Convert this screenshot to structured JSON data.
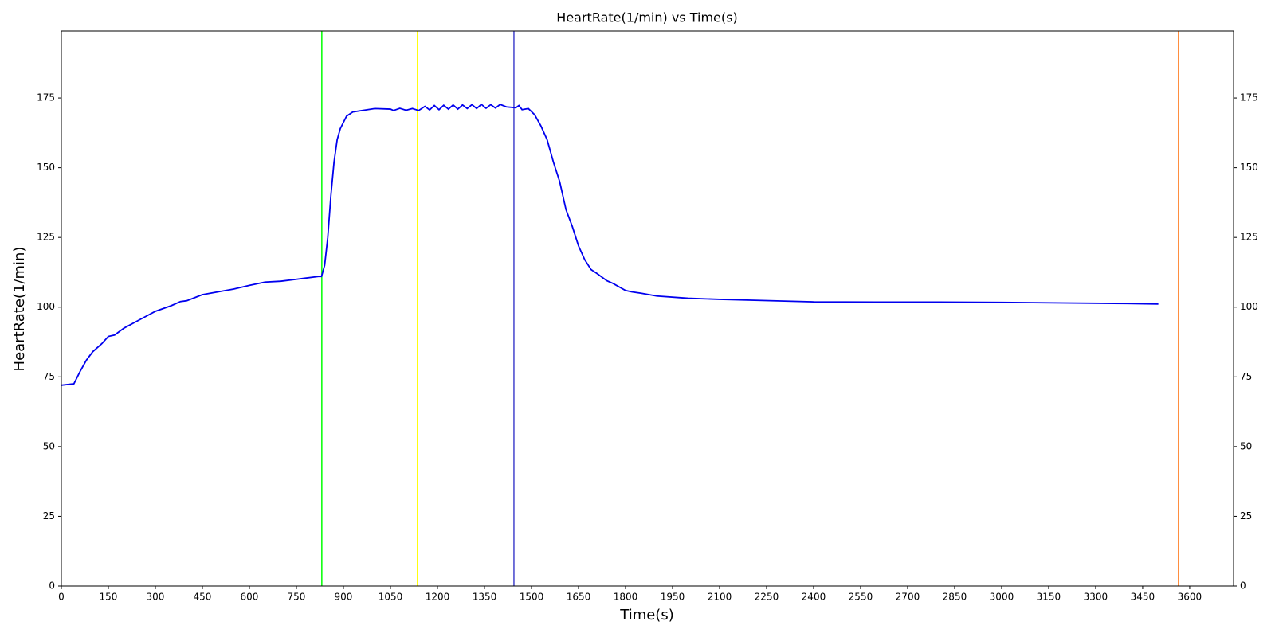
{
  "chart_data": {
    "type": "line",
    "title": "HeartRate(1/min) vs Time(s)",
    "x_label": "Time(s)",
    "y_label": "HeartRate(1/min)",
    "x": [
      0,
      40,
      60,
      80,
      100,
      130,
      150,
      170,
      200,
      250,
      300,
      350,
      380,
      400,
      450,
      500,
      550,
      600,
      650,
      700,
      750,
      820,
      830,
      840,
      850,
      860,
      870,
      880,
      890,
      910,
      930,
      1000,
      1050,
      1060,
      1080,
      1100,
      1120,
      1140,
      1160,
      1175,
      1190,
      1205,
      1220,
      1235,
      1250,
      1265,
      1280,
      1295,
      1310,
      1325,
      1340,
      1355,
      1370,
      1385,
      1400,
      1420,
      1450,
      1460,
      1470,
      1490,
      1510,
      1530,
      1550,
      1570,
      1590,
      1610,
      1630,
      1650,
      1670,
      1690,
      1710,
      1740,
      1760,
      1800,
      1820,
      1850,
      1900,
      2000,
      2100,
      2200,
      2400,
      2600,
      2800,
      3000,
      3200,
      3400,
      3500
    ],
    "series": [
      {
        "color": "#0000ee",
        "values": [
          72,
          72.5,
          77,
          81,
          84,
          87,
          89.5,
          90,
          92.5,
          95.5,
          98.5,
          100.5,
          102,
          102.3,
          104.5,
          105.5,
          106.5,
          107.8,
          109,
          109.3,
          110,
          111,
          111,
          115,
          125,
          140,
          152,
          160,
          164,
          168.5,
          170,
          171.2,
          171,
          170.5,
          171.3,
          170.6,
          171.2,
          170.5,
          172,
          170.7,
          172.3,
          170.8,
          172.4,
          171,
          172.5,
          171,
          172.5,
          171.2,
          172.6,
          171.2,
          172.7,
          171.3,
          172.6,
          171.4,
          172.7,
          171.8,
          171.5,
          172.3,
          170.8,
          171.2,
          169,
          165,
          160,
          152,
          145,
          135,
          129,
          122,
          117,
          113.5,
          112,
          109.5,
          108.5,
          106,
          105.5,
          105,
          104,
          103.2,
          102.8,
          102.5,
          101.9,
          101.8,
          101.8,
          101.7,
          101.5,
          101.3,
          101.1
        ]
      }
    ],
    "vlines": [
      {
        "x": 831,
        "color": "#00ff00"
      },
      {
        "x": 1136,
        "color": "#ffff00"
      },
      {
        "x": 1444,
        "color": "#4444cc"
      },
      {
        "x": 3564,
        "color": "#ff8c3a"
      }
    ],
    "xlim": [
      0,
      3740
    ],
    "ylim": [
      0,
      199
    ],
    "y2lim": [
      0,
      199
    ],
    "xticks": [
      0,
      150,
      300,
      450,
      600,
      750,
      900,
      1050,
      1200,
      1350,
      1500,
      1650,
      1800,
      1950,
      2100,
      2250,
      2400,
      2550,
      2700,
      2850,
      3000,
      3150,
      3300,
      3450,
      3600
    ],
    "yticks": [
      0,
      25,
      50,
      75,
      100,
      125,
      150,
      175
    ],
    "y2ticks": [
      0,
      25,
      50,
      75,
      100,
      125,
      150,
      175
    ]
  }
}
